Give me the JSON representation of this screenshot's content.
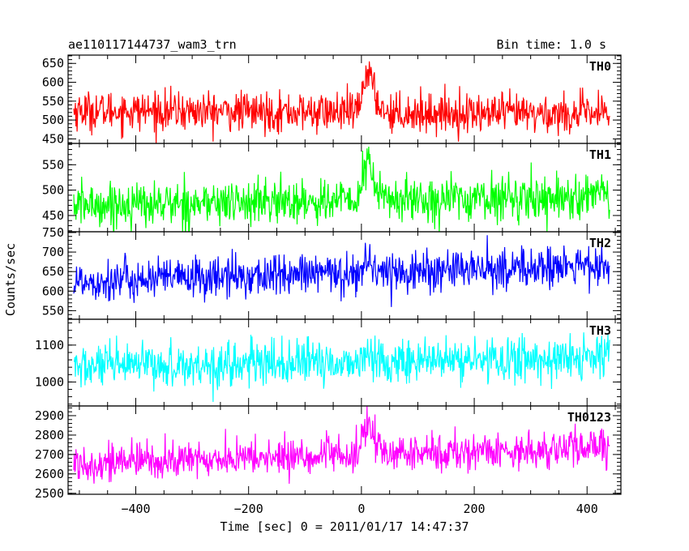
{
  "chart_data": {
    "type": "line",
    "title": "ae110117144737_wam3_trn",
    "subtitle": "Bin time: 1.0 s",
    "xlabel": "Time [sec] 0 = 2011/01/17 14:47:37",
    "ylabel": "Counts/sec",
    "xlim": [
      -520,
      460
    ],
    "x_ticks": [
      -400,
      -200,
      0,
      200,
      400
    ],
    "x_tick_labels": [
      "−400",
      "−200",
      "0",
      "200",
      "400"
    ],
    "x_data_range": [
      -510,
      440
    ],
    "grid": false,
    "legend": "none",
    "series": [
      {
        "name": "TH0",
        "color": "#ff0000",
        "ylim": [
          438,
          672
        ],
        "y_ticks": [
          450,
          500,
          550,
          600,
          650
        ],
        "baseline_start": 525,
        "baseline_end": 515,
        "noise_sd": 26,
        "burst_peak": 660
      },
      {
        "name": "TH1",
        "color": "#00ff00",
        "ylim": [
          418,
          592
        ],
        "y_ticks": [
          450,
          500,
          550
        ],
        "baseline_start": 470,
        "baseline_end": 488,
        "noise_sd": 22,
        "burst_peak": 585
      },
      {
        "name": "TH2",
        "color": "#0000ff",
        "ylim": [
          528,
          752
        ],
        "y_ticks": [
          550,
          600,
          650,
          700,
          750
        ],
        "baseline_start": 625,
        "baseline_end": 665,
        "noise_sd": 27,
        "burst_peak": 700
      },
      {
        "name": "TH3",
        "color": "#00ffff",
        "ylim": [
          935,
          1170
        ],
        "y_ticks": [
          1000,
          1100
        ],
        "baseline_start": 1040,
        "baseline_end": 1065,
        "noise_sd": 30,
        "burst_peak": 1090
      },
      {
        "name": "TH0123",
        "color": "#ff00ff",
        "ylim": [
          2495,
          2950
        ],
        "y_ticks": [
          2500,
          2600,
          2700,
          2800,
          2900
        ],
        "baseline_start": 2655,
        "baseline_end": 2735,
        "noise_sd": 48,
        "burst_peak": 2935
      }
    ]
  }
}
